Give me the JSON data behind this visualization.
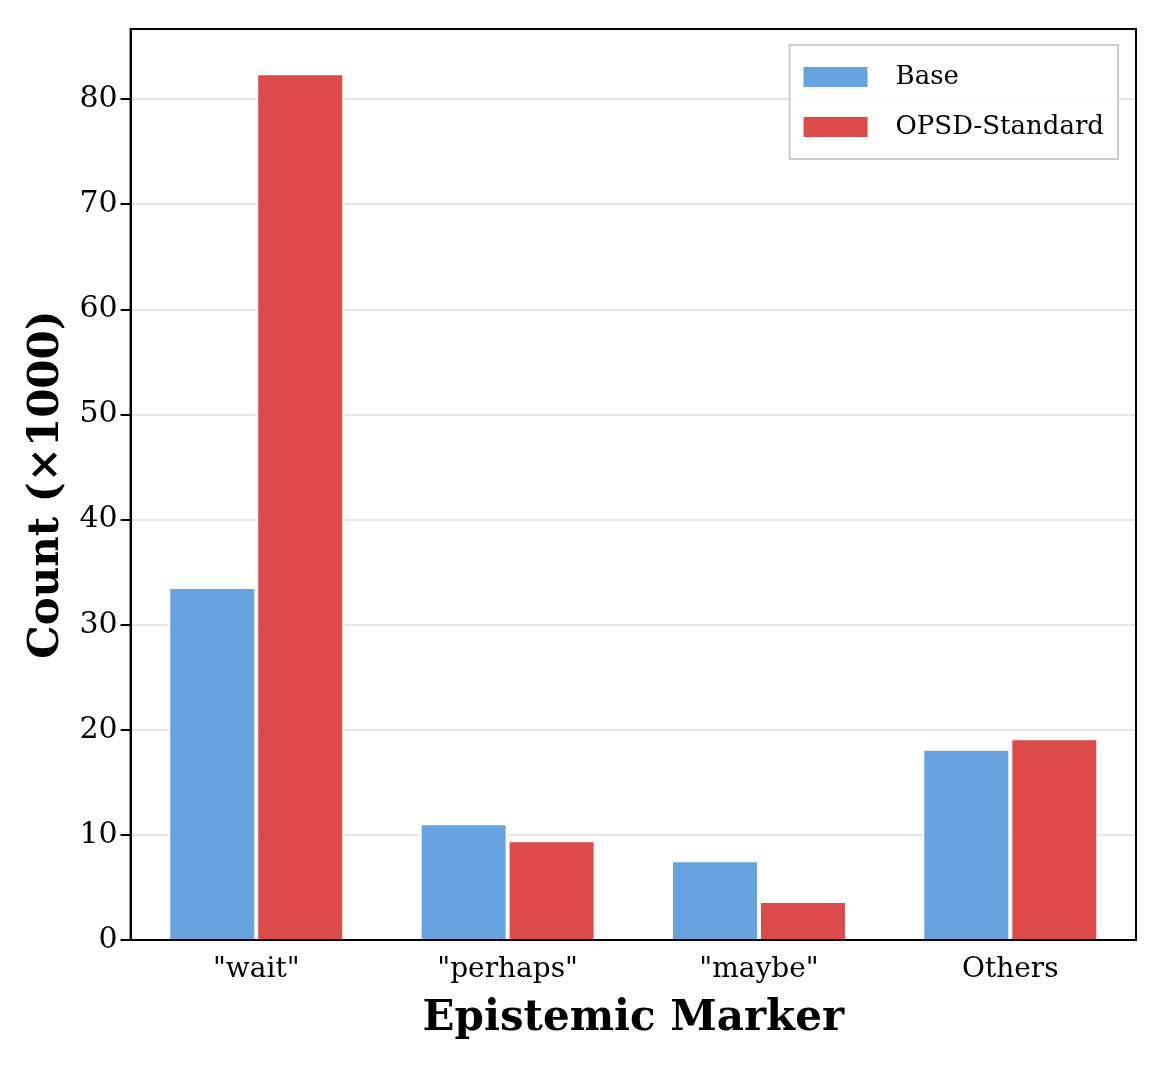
{
  "chart_data": {
    "type": "bar",
    "xlabel": "Epistemic Marker",
    "ylabel": "Count (×1000)",
    "categories": [
      "\"wait\"",
      "\"perhaps\"",
      "\"maybe\"",
      "Others"
    ],
    "series": [
      {
        "name": "Base",
        "color": "#66a3e0",
        "values": [
          33.6,
          11.1,
          7.6,
          18.2
        ]
      },
      {
        "name": "OPSD-Standard",
        "color": "#dd4a4a",
        "values": [
          82.5,
          9.5,
          3.7,
          19.2
        ]
      }
    ],
    "ylim": [
      0,
      86.7
    ],
    "yticks": [
      0,
      10,
      20,
      30,
      40,
      50,
      60,
      70,
      80
    ],
    "grid": "y",
    "legend": "top right"
  }
}
